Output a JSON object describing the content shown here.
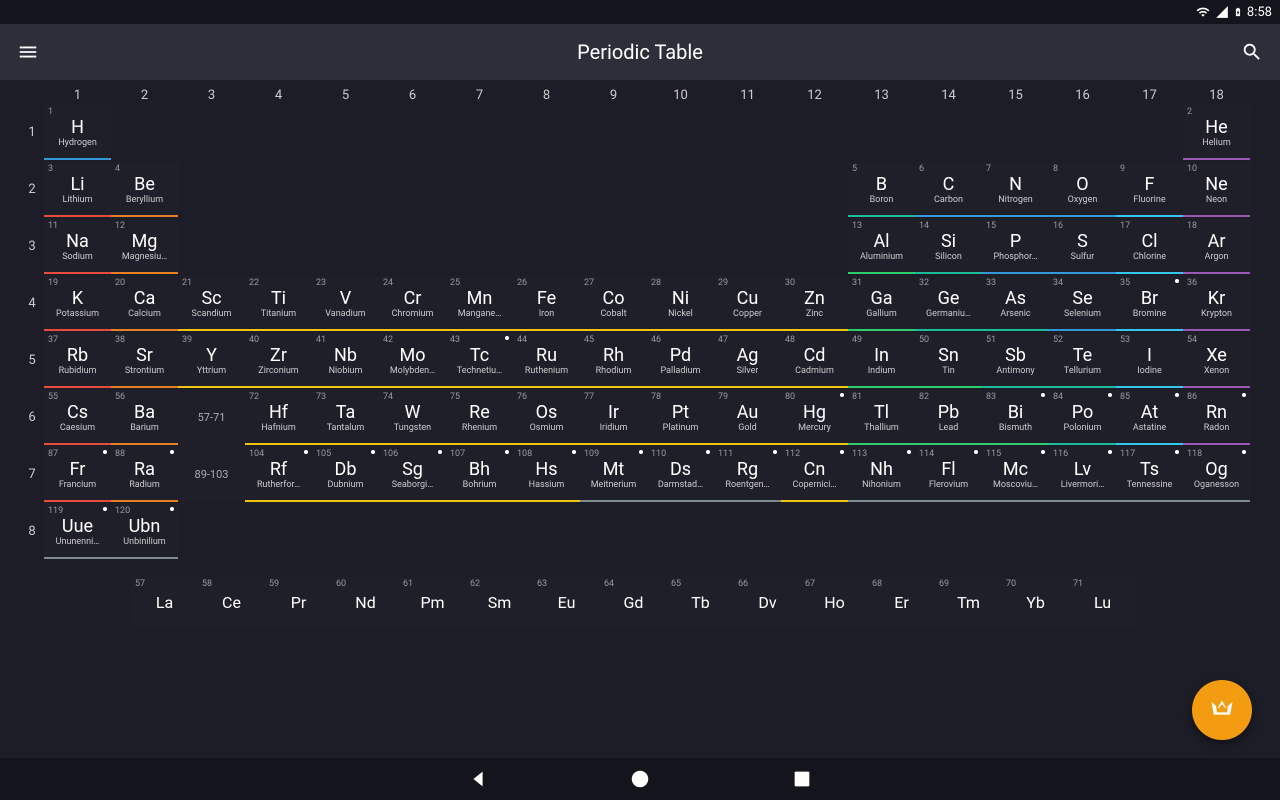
{
  "status": {
    "time": "8:58"
  },
  "appbar": {
    "title": "Periodic Table"
  },
  "colors": {
    "alkali": "#e74c3c",
    "alkaline": "#e67e22",
    "transition": "#f1c40f",
    "post": "#2ecc71",
    "metalloid": "#1abc9c",
    "nonmetal": "#3498db",
    "halogen": "#34c6eb",
    "noble": "#9b59b6",
    "lanth": "#c0392b",
    "actin": "#8e44ad",
    "unknown": "#7f8c8d",
    "fab": "#f39c12"
  },
  "columns": [
    "1",
    "2",
    "3",
    "4",
    "5",
    "6",
    "7",
    "8",
    "9",
    "10",
    "11",
    "12",
    "13",
    "14",
    "15",
    "16",
    "17",
    "18"
  ],
  "periods": [
    "1",
    "2",
    "3",
    "4",
    "5",
    "6",
    "7",
    "8"
  ],
  "ranges": {
    "p6": "57-71",
    "p7": "89-103"
  },
  "elements": [
    {
      "n": 1,
      "s": "H",
      "nm": "Hydrogen",
      "p": 1,
      "g": 1,
      "cat": "nonmetal"
    },
    {
      "n": 2,
      "s": "He",
      "nm": "Helium",
      "p": 1,
      "g": 18,
      "cat": "noble"
    },
    {
      "n": 3,
      "s": "Li",
      "nm": "Lithium",
      "p": 2,
      "g": 1,
      "cat": "alkali"
    },
    {
      "n": 4,
      "s": "Be",
      "nm": "Beryllium",
      "p": 2,
      "g": 2,
      "cat": "alkaline"
    },
    {
      "n": 5,
      "s": "B",
      "nm": "Boron",
      "p": 2,
      "g": 13,
      "cat": "metalloid"
    },
    {
      "n": 6,
      "s": "C",
      "nm": "Carbon",
      "p": 2,
      "g": 14,
      "cat": "nonmetal"
    },
    {
      "n": 7,
      "s": "N",
      "nm": "Nitrogen",
      "p": 2,
      "g": 15,
      "cat": "nonmetal"
    },
    {
      "n": 8,
      "s": "O",
      "nm": "Oxygen",
      "p": 2,
      "g": 16,
      "cat": "nonmetal"
    },
    {
      "n": 9,
      "s": "F",
      "nm": "Fluorine",
      "p": 2,
      "g": 17,
      "cat": "halogen"
    },
    {
      "n": 10,
      "s": "Ne",
      "nm": "Neon",
      "p": 2,
      "g": 18,
      "cat": "noble"
    },
    {
      "n": 11,
      "s": "Na",
      "nm": "Sodium",
      "p": 3,
      "g": 1,
      "cat": "alkali"
    },
    {
      "n": 12,
      "s": "Mg",
      "nm": "Magnesiu…",
      "p": 3,
      "g": 2,
      "cat": "alkaline"
    },
    {
      "n": 13,
      "s": "Al",
      "nm": "Aluminium",
      "p": 3,
      "g": 13,
      "cat": "post"
    },
    {
      "n": 14,
      "s": "Si",
      "nm": "Silicon",
      "p": 3,
      "g": 14,
      "cat": "metalloid"
    },
    {
      "n": 15,
      "s": "P",
      "nm": "Phosphor…",
      "p": 3,
      "g": 15,
      "cat": "nonmetal"
    },
    {
      "n": 16,
      "s": "S",
      "nm": "Sulfur",
      "p": 3,
      "g": 16,
      "cat": "nonmetal"
    },
    {
      "n": 17,
      "s": "Cl",
      "nm": "Chlorine",
      "p": 3,
      "g": 17,
      "cat": "halogen"
    },
    {
      "n": 18,
      "s": "Ar",
      "nm": "Argon",
      "p": 3,
      "g": 18,
      "cat": "noble"
    },
    {
      "n": 19,
      "s": "K",
      "nm": "Potassium",
      "p": 4,
      "g": 1,
      "cat": "alkali"
    },
    {
      "n": 20,
      "s": "Ca",
      "nm": "Calcium",
      "p": 4,
      "g": 2,
      "cat": "alkaline"
    },
    {
      "n": 21,
      "s": "Sc",
      "nm": "Scandium",
      "p": 4,
      "g": 3,
      "cat": "transition"
    },
    {
      "n": 22,
      "s": "Ti",
      "nm": "Titanium",
      "p": 4,
      "g": 4,
      "cat": "transition"
    },
    {
      "n": 23,
      "s": "V",
      "nm": "Vanadium",
      "p": 4,
      "g": 5,
      "cat": "transition"
    },
    {
      "n": 24,
      "s": "Cr",
      "nm": "Chromium",
      "p": 4,
      "g": 6,
      "cat": "transition"
    },
    {
      "n": 25,
      "s": "Mn",
      "nm": "Mangane…",
      "p": 4,
      "g": 7,
      "cat": "transition"
    },
    {
      "n": 26,
      "s": "Fe",
      "nm": "Iron",
      "p": 4,
      "g": 8,
      "cat": "transition"
    },
    {
      "n": 27,
      "s": "Co",
      "nm": "Cobalt",
      "p": 4,
      "g": 9,
      "cat": "transition"
    },
    {
      "n": 28,
      "s": "Ni",
      "nm": "Nickel",
      "p": 4,
      "g": 10,
      "cat": "transition"
    },
    {
      "n": 29,
      "s": "Cu",
      "nm": "Copper",
      "p": 4,
      "g": 11,
      "cat": "transition"
    },
    {
      "n": 30,
      "s": "Zn",
      "nm": "Zinc",
      "p": 4,
      "g": 12,
      "cat": "transition"
    },
    {
      "n": 31,
      "s": "Ga",
      "nm": "Gallium",
      "p": 4,
      "g": 13,
      "cat": "post"
    },
    {
      "n": 32,
      "s": "Ge",
      "nm": "Germaniu…",
      "p": 4,
      "g": 14,
      "cat": "metalloid"
    },
    {
      "n": 33,
      "s": "As",
      "nm": "Arsenic",
      "p": 4,
      "g": 15,
      "cat": "metalloid"
    },
    {
      "n": 34,
      "s": "Se",
      "nm": "Selenium",
      "p": 4,
      "g": 16,
      "cat": "nonmetal"
    },
    {
      "n": 35,
      "s": "Br",
      "nm": "Bromine",
      "p": 4,
      "g": 17,
      "cat": "halogen",
      "dot": true
    },
    {
      "n": 36,
      "s": "Kr",
      "nm": "Krypton",
      "p": 4,
      "g": 18,
      "cat": "noble"
    },
    {
      "n": 37,
      "s": "Rb",
      "nm": "Rubidium",
      "p": 5,
      "g": 1,
      "cat": "alkali"
    },
    {
      "n": 38,
      "s": "Sr",
      "nm": "Strontium",
      "p": 5,
      "g": 2,
      "cat": "alkaline"
    },
    {
      "n": 39,
      "s": "Y",
      "nm": "Yttrium",
      "p": 5,
      "g": 3,
      "cat": "transition"
    },
    {
      "n": 40,
      "s": "Zr",
      "nm": "Zirconium",
      "p": 5,
      "g": 4,
      "cat": "transition"
    },
    {
      "n": 41,
      "s": "Nb",
      "nm": "Niobium",
      "p": 5,
      "g": 5,
      "cat": "transition"
    },
    {
      "n": 42,
      "s": "Mo",
      "nm": "Molybden…",
      "p": 5,
      "g": 6,
      "cat": "transition"
    },
    {
      "n": 43,
      "s": "Tc",
      "nm": "Technetiu…",
      "p": 5,
      "g": 7,
      "cat": "transition",
      "dot": true
    },
    {
      "n": 44,
      "s": "Ru",
      "nm": "Ruthenium",
      "p": 5,
      "g": 8,
      "cat": "transition"
    },
    {
      "n": 45,
      "s": "Rh",
      "nm": "Rhodium",
      "p": 5,
      "g": 9,
      "cat": "transition"
    },
    {
      "n": 46,
      "s": "Pd",
      "nm": "Palladium",
      "p": 5,
      "g": 10,
      "cat": "transition"
    },
    {
      "n": 47,
      "s": "Ag",
      "nm": "Silver",
      "p": 5,
      "g": 11,
      "cat": "transition"
    },
    {
      "n": 48,
      "s": "Cd",
      "nm": "Cadmium",
      "p": 5,
      "g": 12,
      "cat": "transition"
    },
    {
      "n": 49,
      "s": "In",
      "nm": "Indium",
      "p": 5,
      "g": 13,
      "cat": "post"
    },
    {
      "n": 50,
      "s": "Sn",
      "nm": "Tin",
      "p": 5,
      "g": 14,
      "cat": "post"
    },
    {
      "n": 51,
      "s": "Sb",
      "nm": "Antimony",
      "p": 5,
      "g": 15,
      "cat": "metalloid"
    },
    {
      "n": 52,
      "s": "Te",
      "nm": "Tellurium",
      "p": 5,
      "g": 16,
      "cat": "metalloid"
    },
    {
      "n": 53,
      "s": "I",
      "nm": "Iodine",
      "p": 5,
      "g": 17,
      "cat": "halogen"
    },
    {
      "n": 54,
      "s": "Xe",
      "nm": "Xenon",
      "p": 5,
      "g": 18,
      "cat": "noble"
    },
    {
      "n": 55,
      "s": "Cs",
      "nm": "Caesium",
      "p": 6,
      "g": 1,
      "cat": "alkali"
    },
    {
      "n": 56,
      "s": "Ba",
      "nm": "Barium",
      "p": 6,
      "g": 2,
      "cat": "alkaline"
    },
    {
      "n": 72,
      "s": "Hf",
      "nm": "Hafnium",
      "p": 6,
      "g": 4,
      "cat": "transition"
    },
    {
      "n": 73,
      "s": "Ta",
      "nm": "Tantalum",
      "p": 6,
      "g": 5,
      "cat": "transition"
    },
    {
      "n": 74,
      "s": "W",
      "nm": "Tungsten",
      "p": 6,
      "g": 6,
      "cat": "transition"
    },
    {
      "n": 75,
      "s": "Re",
      "nm": "Rhenium",
      "p": 6,
      "g": 7,
      "cat": "transition"
    },
    {
      "n": 76,
      "s": "Os",
      "nm": "Osmium",
      "p": 6,
      "g": 8,
      "cat": "transition"
    },
    {
      "n": 77,
      "s": "Ir",
      "nm": "Iridium",
      "p": 6,
      "g": 9,
      "cat": "transition"
    },
    {
      "n": 78,
      "s": "Pt",
      "nm": "Platinum",
      "p": 6,
      "g": 10,
      "cat": "transition"
    },
    {
      "n": 79,
      "s": "Au",
      "nm": "Gold",
      "p": 6,
      "g": 11,
      "cat": "transition"
    },
    {
      "n": 80,
      "s": "Hg",
      "nm": "Mercury",
      "p": 6,
      "g": 12,
      "cat": "transition",
      "dot": true
    },
    {
      "n": 81,
      "s": "Tl",
      "nm": "Thallium",
      "p": 6,
      "g": 13,
      "cat": "post"
    },
    {
      "n": 82,
      "s": "Pb",
      "nm": "Lead",
      "p": 6,
      "g": 14,
      "cat": "post"
    },
    {
      "n": 83,
      "s": "Bi",
      "nm": "Bismuth",
      "p": 6,
      "g": 15,
      "cat": "post",
      "dot": true
    },
    {
      "n": 84,
      "s": "Po",
      "nm": "Polonium",
      "p": 6,
      "g": 16,
      "cat": "metalloid",
      "dot": true
    },
    {
      "n": 85,
      "s": "At",
      "nm": "Astatine",
      "p": 6,
      "g": 17,
      "cat": "halogen",
      "dot": true
    },
    {
      "n": 86,
      "s": "Rn",
      "nm": "Radon",
      "p": 6,
      "g": 18,
      "cat": "noble",
      "dot": true
    },
    {
      "n": 87,
      "s": "Fr",
      "nm": "Francium",
      "p": 7,
      "g": 1,
      "cat": "alkali",
      "dot": true
    },
    {
      "n": 88,
      "s": "Ra",
      "nm": "Radium",
      "p": 7,
      "g": 2,
      "cat": "alkaline",
      "dot": true
    },
    {
      "n": 104,
      "s": "Rf",
      "nm": "Rutherfor…",
      "p": 7,
      "g": 4,
      "cat": "transition",
      "dot": true
    },
    {
      "n": 105,
      "s": "Db",
      "nm": "Dubnium",
      "p": 7,
      "g": 5,
      "cat": "transition",
      "dot": true
    },
    {
      "n": 106,
      "s": "Sg",
      "nm": "Seaborgi…",
      "p": 7,
      "g": 6,
      "cat": "transition",
      "dot": true
    },
    {
      "n": 107,
      "s": "Bh",
      "nm": "Bohrium",
      "p": 7,
      "g": 7,
      "cat": "transition",
      "dot": true
    },
    {
      "n": 108,
      "s": "Hs",
      "nm": "Hassium",
      "p": 7,
      "g": 8,
      "cat": "transition",
      "dot": true
    },
    {
      "n": 109,
      "s": "Mt",
      "nm": "Meitnerium",
      "p": 7,
      "g": 9,
      "cat": "unknown",
      "dot": true
    },
    {
      "n": 110,
      "s": "Ds",
      "nm": "Darmstad…",
      "p": 7,
      "g": 10,
      "cat": "unknown",
      "dot": true
    },
    {
      "n": 111,
      "s": "Rg",
      "nm": "Roentgen…",
      "p": 7,
      "g": 11,
      "cat": "unknown",
      "dot": true
    },
    {
      "n": 112,
      "s": "Cn",
      "nm": "Copernici…",
      "p": 7,
      "g": 12,
      "cat": "transition",
      "dot": true
    },
    {
      "n": 113,
      "s": "Nh",
      "nm": "Nihonium",
      "p": 7,
      "g": 13,
      "cat": "unknown",
      "dot": true
    },
    {
      "n": 114,
      "s": "Fl",
      "nm": "Flerovium",
      "p": 7,
      "g": 14,
      "cat": "unknown",
      "dot": true
    },
    {
      "n": 115,
      "s": "Mc",
      "nm": "Moscoviu…",
      "p": 7,
      "g": 15,
      "cat": "unknown",
      "dot": true
    },
    {
      "n": 116,
      "s": "Lv",
      "nm": "Livermori…",
      "p": 7,
      "g": 16,
      "cat": "unknown",
      "dot": true
    },
    {
      "n": 117,
      "s": "Ts",
      "nm": "Tennessine",
      "p": 7,
      "g": 17,
      "cat": "unknown",
      "dot": true
    },
    {
      "n": 118,
      "s": "Og",
      "nm": "Oganesson",
      "p": 7,
      "g": 18,
      "cat": "unknown",
      "dot": true
    },
    {
      "n": 119,
      "s": "Uue",
      "nm": "Ununenni…",
      "p": 8,
      "g": 1,
      "cat": "unknown",
      "dot": true
    },
    {
      "n": 120,
      "s": "Ubn",
      "nm": "Unbinilium",
      "p": 8,
      "g": 2,
      "cat": "unknown",
      "dot": true
    }
  ],
  "lanthanides": [
    {
      "n": 57,
      "s": "La"
    },
    {
      "n": 58,
      "s": "Ce"
    },
    {
      "n": 59,
      "s": "Pr"
    },
    {
      "n": 60,
      "s": "Nd"
    },
    {
      "n": 61,
      "s": "Pm"
    },
    {
      "n": 62,
      "s": "Sm"
    },
    {
      "n": 63,
      "s": "Eu"
    },
    {
      "n": 64,
      "s": "Gd"
    },
    {
      "n": 65,
      "s": "Tb"
    },
    {
      "n": 66,
      "s": "Dv"
    },
    {
      "n": 67,
      "s": "Ho"
    },
    {
      "n": 68,
      "s": "Er"
    },
    {
      "n": 69,
      "s": "Tm"
    },
    {
      "n": 70,
      "s": "Yb"
    },
    {
      "n": 71,
      "s": "Lu"
    }
  ]
}
